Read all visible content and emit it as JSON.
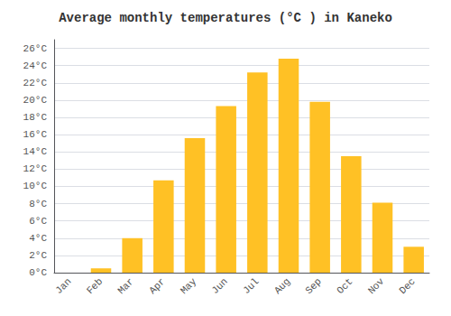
{
  "chart_data": {
    "type": "bar",
    "title": "Average monthly temperatures (°C ) in Kaneko",
    "categories": [
      "Jan",
      "Feb",
      "Mar",
      "Apr",
      "May",
      "Jun",
      "Jul",
      "Aug",
      "Sep",
      "Oct",
      "Nov",
      "Dec"
    ],
    "values": [
      0,
      0.5,
      4.0,
      10.7,
      15.6,
      19.3,
      23.2,
      24.8,
      19.8,
      13.5,
      8.1,
      3.0
    ],
    "color": "#FFC125",
    "ylim": [
      0,
      27
    ],
    "yticks": [
      {
        "value": 0,
        "label": "0°C"
      },
      {
        "value": 2,
        "label": "2°C"
      },
      {
        "value": 4,
        "label": "4°C"
      },
      {
        "value": 6,
        "label": "6°C"
      },
      {
        "value": 8,
        "label": "8°C"
      },
      {
        "value": 10,
        "label": "10°C"
      },
      {
        "value": 12,
        "label": "12°C"
      },
      {
        "value": 14,
        "label": "14°C"
      },
      {
        "value": 16,
        "label": "16°C"
      },
      {
        "value": 18,
        "label": "18°C"
      },
      {
        "value": 20,
        "label": "20°C"
      },
      {
        "value": 22,
        "label": "22°C"
      },
      {
        "value": 24,
        "label": "24°C"
      },
      {
        "value": 26,
        "label": "26°C"
      }
    ],
    "grid": true
  }
}
